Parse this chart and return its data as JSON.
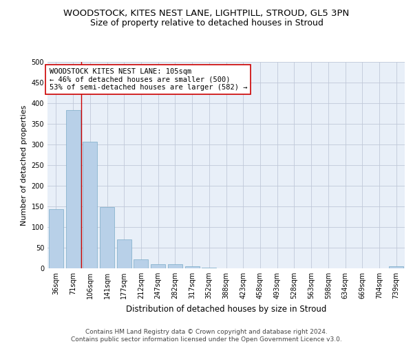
{
  "title": "WOODSTOCK, KITES NEST LANE, LIGHTPILL, STROUD, GL5 3PN",
  "subtitle": "Size of property relative to detached houses in Stroud",
  "xlabel": "Distribution of detached houses by size in Stroud",
  "ylabel": "Number of detached properties",
  "bar_color": "#b8d0e8",
  "bar_edge_color": "#7aaac8",
  "background_color": "#ffffff",
  "axes_background": "#e8eff8",
  "grid_color": "#c0c8d8",
  "annotation_line_color": "#cc0000",
  "annotation_box_color": "#cc0000",
  "annotation_text": "WOODSTOCK KITES NEST LANE: 105sqm\n← 46% of detached houses are smaller (500)\n53% of semi-detached houses are larger (582) →",
  "categories": [
    "36sqm",
    "71sqm",
    "106sqm",
    "141sqm",
    "177sqm",
    "212sqm",
    "247sqm",
    "282sqm",
    "317sqm",
    "352sqm",
    "388sqm",
    "423sqm",
    "458sqm",
    "493sqm",
    "528sqm",
    "563sqm",
    "598sqm",
    "634sqm",
    "669sqm",
    "704sqm",
    "739sqm"
  ],
  "bar_heights": [
    143,
    383,
    307,
    148,
    70,
    22,
    10,
    10,
    5,
    2,
    0,
    0,
    0,
    0,
    0,
    0,
    0,
    0,
    0,
    0,
    5
  ],
  "ylim": [
    0,
    500
  ],
  "yticks": [
    0,
    50,
    100,
    150,
    200,
    250,
    300,
    350,
    400,
    450,
    500
  ],
  "vline_x_index": 1.5,
  "footer": "Contains HM Land Registry data © Crown copyright and database right 2024.\nContains public sector information licensed under the Open Government Licence v3.0.",
  "title_fontsize": 9.5,
  "subtitle_fontsize": 9,
  "xlabel_fontsize": 8.5,
  "ylabel_fontsize": 8,
  "tick_fontsize": 7,
  "annotation_fontsize": 7.5,
  "footer_fontsize": 6.5
}
